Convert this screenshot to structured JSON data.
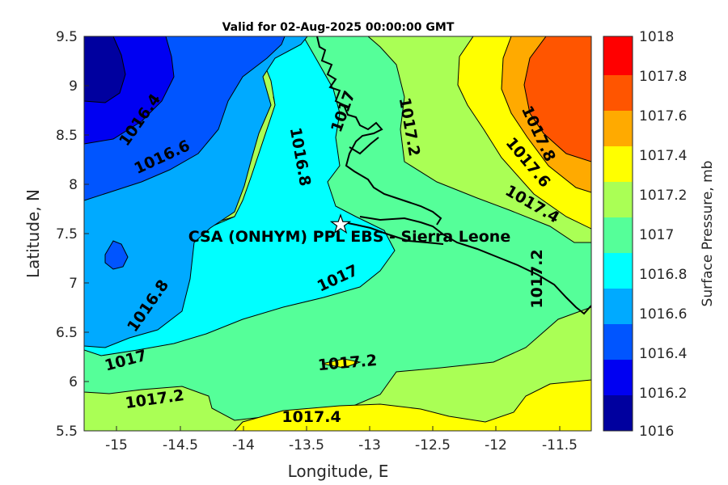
{
  "title": "Valid for 02-Aug-2025 00:00:00 GMT",
  "xlabel": "Longitude, E",
  "ylabel": "Latitude, N",
  "x_ticks": [
    "-15",
    "-14.5",
    "-14",
    "-13.5",
    "-13",
    "-12.5",
    "-12",
    "-11.5"
  ],
  "y_ticks": [
    "9.5",
    "9",
    "8.5",
    "8",
    "7.5",
    "7",
    "6.5",
    "6",
    "5.5"
  ],
  "colorbar": {
    "label": "Surface Pressure, mb",
    "ticks": [
      "1018",
      "1017.8",
      "1017.6",
      "1017.4",
      "1017.2",
      "1017",
      "1016.8",
      "1016.6",
      "1016.4",
      "1016.2",
      "1016"
    ],
    "levels": [
      {
        "from": 1016.0,
        "to": 1016.2,
        "color": "#00009f"
      },
      {
        "from": 1016.2,
        "to": 1016.4,
        "color": "#0000f2"
      },
      {
        "from": 1016.4,
        "to": 1016.6,
        "color": "#0055ff"
      },
      {
        "from": 1016.6,
        "to": 1016.8,
        "color": "#00aaff"
      },
      {
        "from": 1016.8,
        "to": 1017.0,
        "color": "#00ffff"
      },
      {
        "from": 1017.0,
        "to": 1017.2,
        "color": "#55ff99"
      },
      {
        "from": 1017.2,
        "to": 1017.4,
        "color": "#aaff55"
      },
      {
        "from": 1017.4,
        "to": 1017.6,
        "color": "#ffff00"
      },
      {
        "from": 1017.6,
        "to": 1017.8,
        "color": "#ffaa00"
      },
      {
        "from": 1017.8,
        "to": 1018.0,
        "color": "#ff5500"
      },
      {
        "from": 1018.0,
        "to": 1018.2,
        "color": "#ff0000"
      }
    ]
  },
  "station": {
    "label": "CSA (ONHYM) PPL EBS  - Sierra Leone",
    "lon": -13.25,
    "lat": 7.6,
    "marker": "star-icon"
  },
  "contour_labels": [
    "1016.4",
    "1016.6",
    "1016.8",
    "1016.8",
    "1017",
    "1017",
    "1017",
    "1017.2",
    "1017.2",
    "1017.2",
    "1017.2",
    "1017.4",
    "1017.4",
    "1017.6",
    "1017.8"
  ],
  "chart_data": {
    "type": "heatmap",
    "subtype": "filled contour map",
    "title": "Valid for 02-Aug-2025 00:00:00 GMT",
    "xlabel": "Longitude, E",
    "ylabel": "Latitude, N",
    "xlim": [
      -15.25,
      -11.25
    ],
    "ylim": [
      5.5,
      9.5
    ],
    "zlabel": "Surface Pressure, mb",
    "zlim": [
      1016,
      1018.2
    ],
    "contour_interval": 0.2,
    "approx_regions": [
      {
        "area": "northwest corner",
        "value_range": [
          1016.0,
          1016.2
        ]
      },
      {
        "area": "northwest band",
        "value_range": [
          1016.2,
          1016.6
        ]
      },
      {
        "area": "western interior",
        "value_range": [
          1016.6,
          1016.8
        ]
      },
      {
        "area": "central around station",
        "value_range": [
          1016.8,
          1017.0
        ]
      },
      {
        "area": "south-central",
        "value_range": [
          1017.0,
          1017.2
        ]
      },
      {
        "area": "south / east",
        "value_range": [
          1017.2,
          1017.4
        ]
      },
      {
        "area": "northeast",
        "value_range": [
          1017.4,
          1017.8
        ]
      },
      {
        "area": "far northeast",
        "value_range": [
          1017.8,
          1018.0
        ]
      }
    ]
  }
}
